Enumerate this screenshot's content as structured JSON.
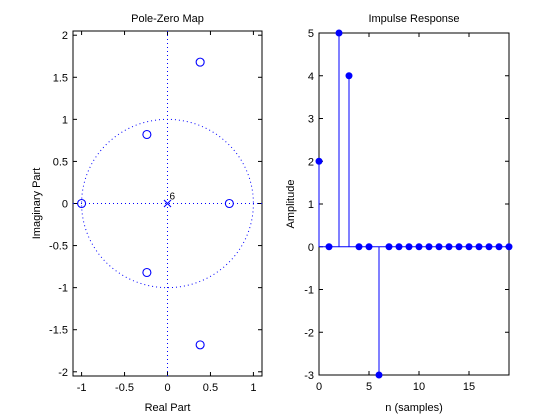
{
  "chart_data": [
    {
      "type": "scatter",
      "title": "Pole-Zero Map",
      "xlabel": "Real Part",
      "ylabel": "Imaginary Part",
      "xlim": [
        -1.1,
        1.1
      ],
      "ylim": [
        -2.05,
        2.05
      ],
      "xticks": [
        -1,
        -0.5,
        0,
        0.5,
        1
      ],
      "xtick_labels": [
        "-1",
        "-0.5",
        "0",
        "0.5",
        "1"
      ],
      "yticks": [
        -2,
        -1.5,
        -1,
        -0.5,
        0,
        0.5,
        1,
        1.5,
        2
      ],
      "ytick_labels": [
        "-2",
        "-1.5",
        "-1",
        "-0.5",
        "0",
        "0.5",
        "1",
        "1.5",
        "2"
      ],
      "zeros": [
        {
          "x": -1.0,
          "y": 0
        },
        {
          "x": 0.72,
          "y": 0
        },
        {
          "x": -0.24,
          "y": 0.82
        },
        {
          "x": -0.24,
          "y": -0.82
        },
        {
          "x": 0.38,
          "y": 1.68
        },
        {
          "x": 0.38,
          "y": -1.68
        }
      ],
      "poles": [
        {
          "x": 0,
          "y": 0
        }
      ],
      "pole_multiplicity_label": "6",
      "unit_circle": true,
      "grid": false,
      "colors": {
        "markers": "#0000ff",
        "axes": "#000000"
      }
    },
    {
      "type": "stem",
      "title": "Impulse Response",
      "xlabel": "n (samples)",
      "ylabel": "Amplitude",
      "xlim": [
        0,
        19
      ],
      "ylim": [
        -3,
        5
      ],
      "xticks": [
        0,
        5,
        10,
        15
      ],
      "xtick_labels": [
        "0",
        "5",
        "10",
        "15"
      ],
      "yticks": [
        -3,
        -2,
        -1,
        0,
        1,
        2,
        3,
        4,
        5
      ],
      "ytick_labels": [
        "-3",
        "-2",
        "-1",
        "0",
        "1",
        "2",
        "3",
        "4",
        "5"
      ],
      "x": [
        0,
        1,
        2,
        3,
        4,
        5,
        6,
        7,
        8,
        9,
        10,
        11,
        12,
        13,
        14,
        15,
        16,
        17,
        18,
        19
      ],
      "values": [
        2,
        0,
        5,
        4,
        0,
        0,
        -3,
        0,
        0,
        0,
        0,
        0,
        0,
        0,
        0,
        0,
        0,
        0,
        0,
        0
      ],
      "grid": false,
      "colors": {
        "markers": "#0000ff",
        "axes": "#000000"
      }
    }
  ]
}
